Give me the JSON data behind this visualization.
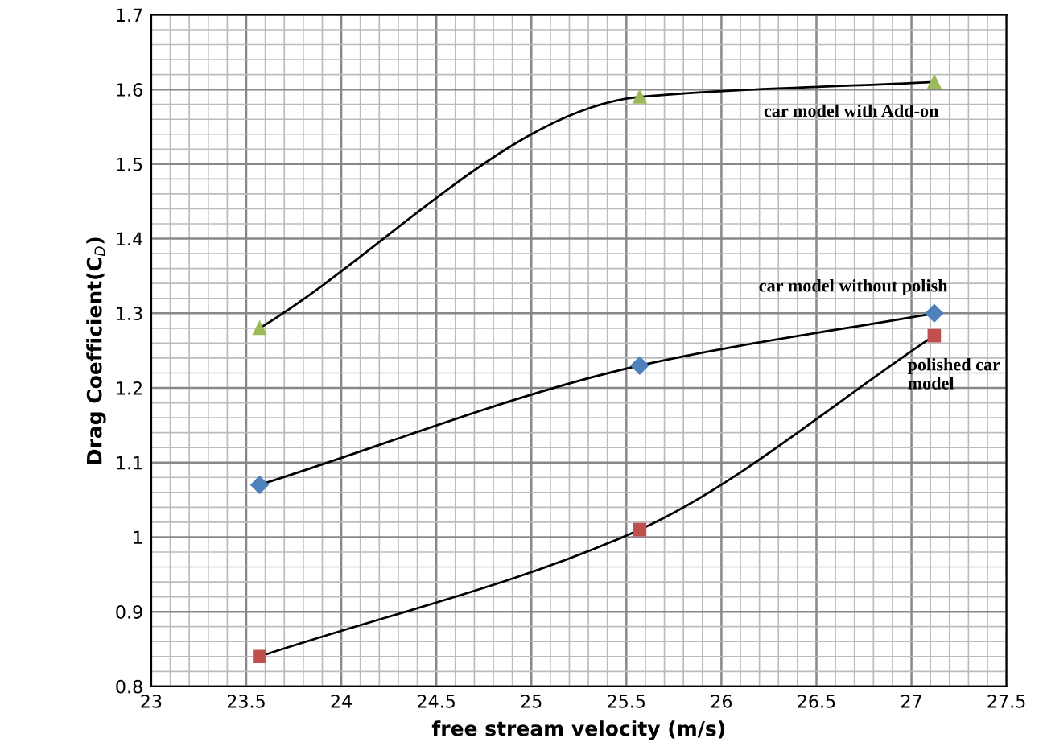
{
  "chart_data": {
    "type": "line",
    "xlabel": "free stream velocity (m/s)",
    "ylabel": "Drag Coefficient(C$_{D}$)",
    "x": [
      23.57,
      25.57,
      27.12
    ],
    "series": [
      {
        "name": "car model with Add-on",
        "color": "#9bbb59",
        "marker": "triangle",
        "values": [
          1.28,
          1.59,
          1.61
        ]
      },
      {
        "name": "car model without polish",
        "color": "#4f81bd",
        "marker": "diamond",
        "values": [
          1.07,
          1.23,
          1.3
        ]
      },
      {
        "name": "polished car model",
        "color": "#c0504d",
        "marker": "square",
        "values": [
          0.84,
          1.01,
          1.27
        ]
      }
    ],
    "xlim": [
      23,
      27.5
    ],
    "xticks": [
      23,
      23.5,
      24,
      24.5,
      25,
      25.5,
      26,
      26.5,
      27,
      27.5
    ],
    "ylim": [
      0.8,
      1.7
    ],
    "yticks": [
      0.8,
      0.9,
      1,
      1.1,
      1.2,
      1.3,
      1.4,
      1.5,
      1.6,
      1.7
    ],
    "grid": true,
    "legend": false
  }
}
